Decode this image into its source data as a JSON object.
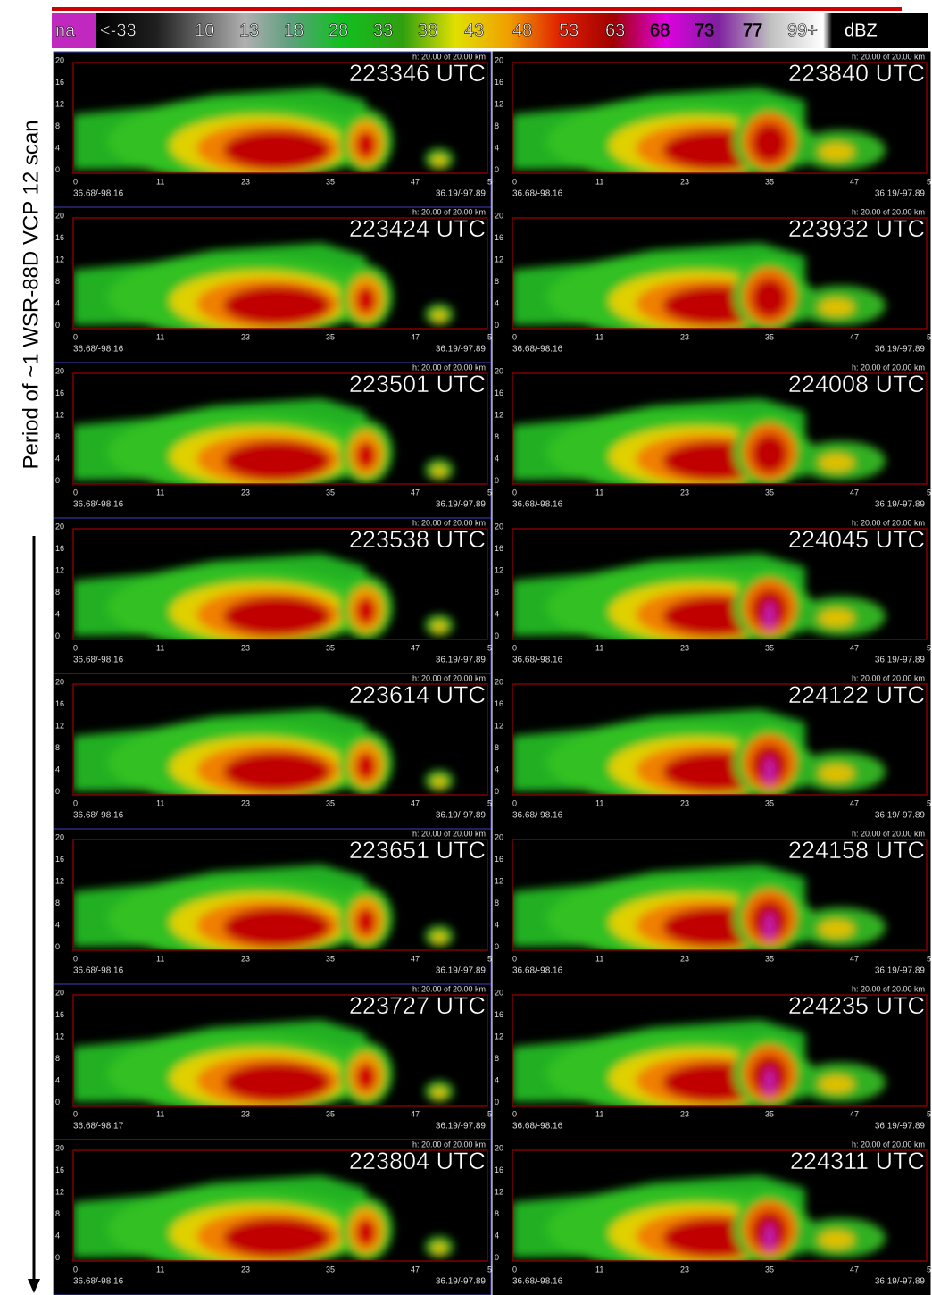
{
  "colorbar": {
    "labels": [
      "na",
      "<-33",
      "10",
      "13",
      "18",
      "28",
      "33",
      "38",
      "43",
      "48",
      "53",
      "63",
      "68",
      "73",
      "77",
      "99+"
    ],
    "unit": "dBZ"
  },
  "side_label": "Period of ~1 WSR-88D VCP 12 scan",
  "height_label": "h: 20.00 of 20.00 km",
  "y_ticks": [
    "20",
    "16",
    "12",
    "8",
    "4",
    "0"
  ],
  "x_ticks": [
    "0",
    "11",
    "23",
    "35",
    "47",
    "5"
  ],
  "left_column": [
    {
      "time": "223346 UTC",
      "start": "36.68/-98.16",
      "end": "36.19/-97.89"
    },
    {
      "time": "223424 UTC",
      "start": "36.68/-98.16",
      "end": "36.19/-97.89"
    },
    {
      "time": "223501 UTC",
      "start": "36.68/-98.16",
      "end": "36.19/-97.89"
    },
    {
      "time": "223538 UTC",
      "start": "36.68/-98.16",
      "end": "36.19/-97.89"
    },
    {
      "time": "223614 UTC",
      "start": "36.68/-98.16",
      "end": "36.19/-97.89"
    },
    {
      "time": "223651 UTC",
      "start": "36.68/-98.16",
      "end": "36.19/-97.89"
    },
    {
      "time": "223727 UTC",
      "start": "36.68/-98.17",
      "end": "36.19/-97.89"
    },
    {
      "time": "223804 UTC",
      "start": "36.68/-98.16",
      "end": "36.19/-97.89"
    }
  ],
  "right_column": [
    {
      "time": "223840 UTC",
      "start": "36.68/-98.16",
      "end": "36.19/-97.89"
    },
    {
      "time": "223932 UTC",
      "start": "36.68/-98.16",
      "end": "36.19/-97.89"
    },
    {
      "time": "224008 UTC",
      "start": "36.68/-98.16",
      "end": "36.19/-97.89"
    },
    {
      "time": "224045 UTC",
      "start": "36.68/-98.16",
      "end": "36.19/-97.89"
    },
    {
      "time": "224122 UTC",
      "start": "36.68/-98.16",
      "end": "36.19/-97.89"
    },
    {
      "time": "224158 UTC",
      "start": "36.68/-98.16",
      "end": "36.19/-97.89"
    },
    {
      "time": "224235 UTC",
      "start": "36.68/-98.16",
      "end": "36.19/-97.89"
    },
    {
      "time": "224311 UTC",
      "start": "36.68/-98.16",
      "end": "36.19/-97.89"
    }
  ]
}
